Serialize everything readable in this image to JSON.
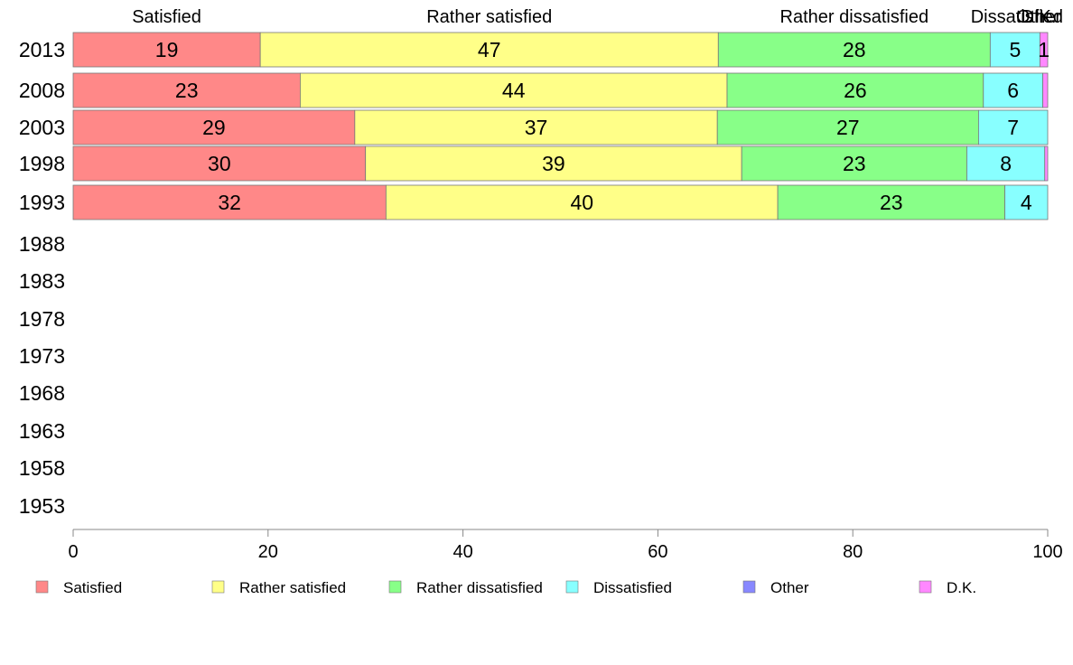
{
  "chart_data": {
    "type": "bar",
    "orientation": "horizontal",
    "stacked": true,
    "categories": [
      "2013",
      "2008",
      "2003",
      "1998",
      "1993",
      "1988",
      "1983",
      "1978",
      "1973",
      "1968",
      "1963",
      "1958",
      "1953"
    ],
    "series": [
      {
        "name": "Satisfied",
        "color": "#ff8888",
        "values": [
          19.2,
          23.3,
          28.9,
          30.0,
          32.1,
          null,
          null,
          null,
          null,
          null,
          null,
          null,
          null
        ]
      },
      {
        "name": "Rather satisfied",
        "color": "#ffff88",
        "values": [
          47.0,
          43.8,
          37.2,
          38.6,
          40.2,
          null,
          null,
          null,
          null,
          null,
          null,
          null,
          null
        ]
      },
      {
        "name": "Rather dissatisfied",
        "color": "#88ff88",
        "values": [
          27.9,
          26.3,
          26.8,
          23.1,
          23.3,
          null,
          null,
          null,
          null,
          null,
          null,
          null,
          null
        ]
      },
      {
        "name": "Dissatisfied",
        "color": "#88ffff",
        "values": [
          5.1,
          6.1,
          7.1,
          8.0,
          4.4,
          null,
          null,
          null,
          null,
          null,
          null,
          null,
          null
        ]
      },
      {
        "name": "Other",
        "color": "#8888ff",
        "values": [
          0.0,
          0.0,
          0.0,
          0.0,
          0.0,
          null,
          null,
          null,
          null,
          null,
          null,
          null,
          null
        ]
      },
      {
        "name": "D.K.",
        "color": "#ff88ff",
        "values": [
          0.8,
          0.5,
          0.0,
          0.3,
          0.0,
          null,
          null,
          null,
          null,
          null,
          null,
          null,
          null
        ]
      }
    ],
    "data_labels": [
      [
        "19",
        "47",
        "28",
        "5",
        "",
        "1"
      ],
      [
        "23",
        "44",
        "26",
        "6",
        "",
        ""
      ],
      [
        "29",
        "37",
        "27",
        "7",
        "",
        ""
      ],
      [
        "30",
        "39",
        "23",
        "8",
        "",
        ""
      ],
      [
        "32",
        "40",
        "23",
        "4",
        "",
        ""
      ]
    ],
    "top_labels": [
      "Satisfied",
      "Rather satisfied",
      "Rather dissatisfied",
      "Dissatisfied",
      "Other",
      "D.K."
    ],
    "xlim": [
      0,
      100
    ],
    "xticks": [
      0,
      20,
      40,
      60,
      80,
      100
    ],
    "xlabel": "",
    "ylabel": "",
    "legend_position": "bottom",
    "grid": false
  }
}
